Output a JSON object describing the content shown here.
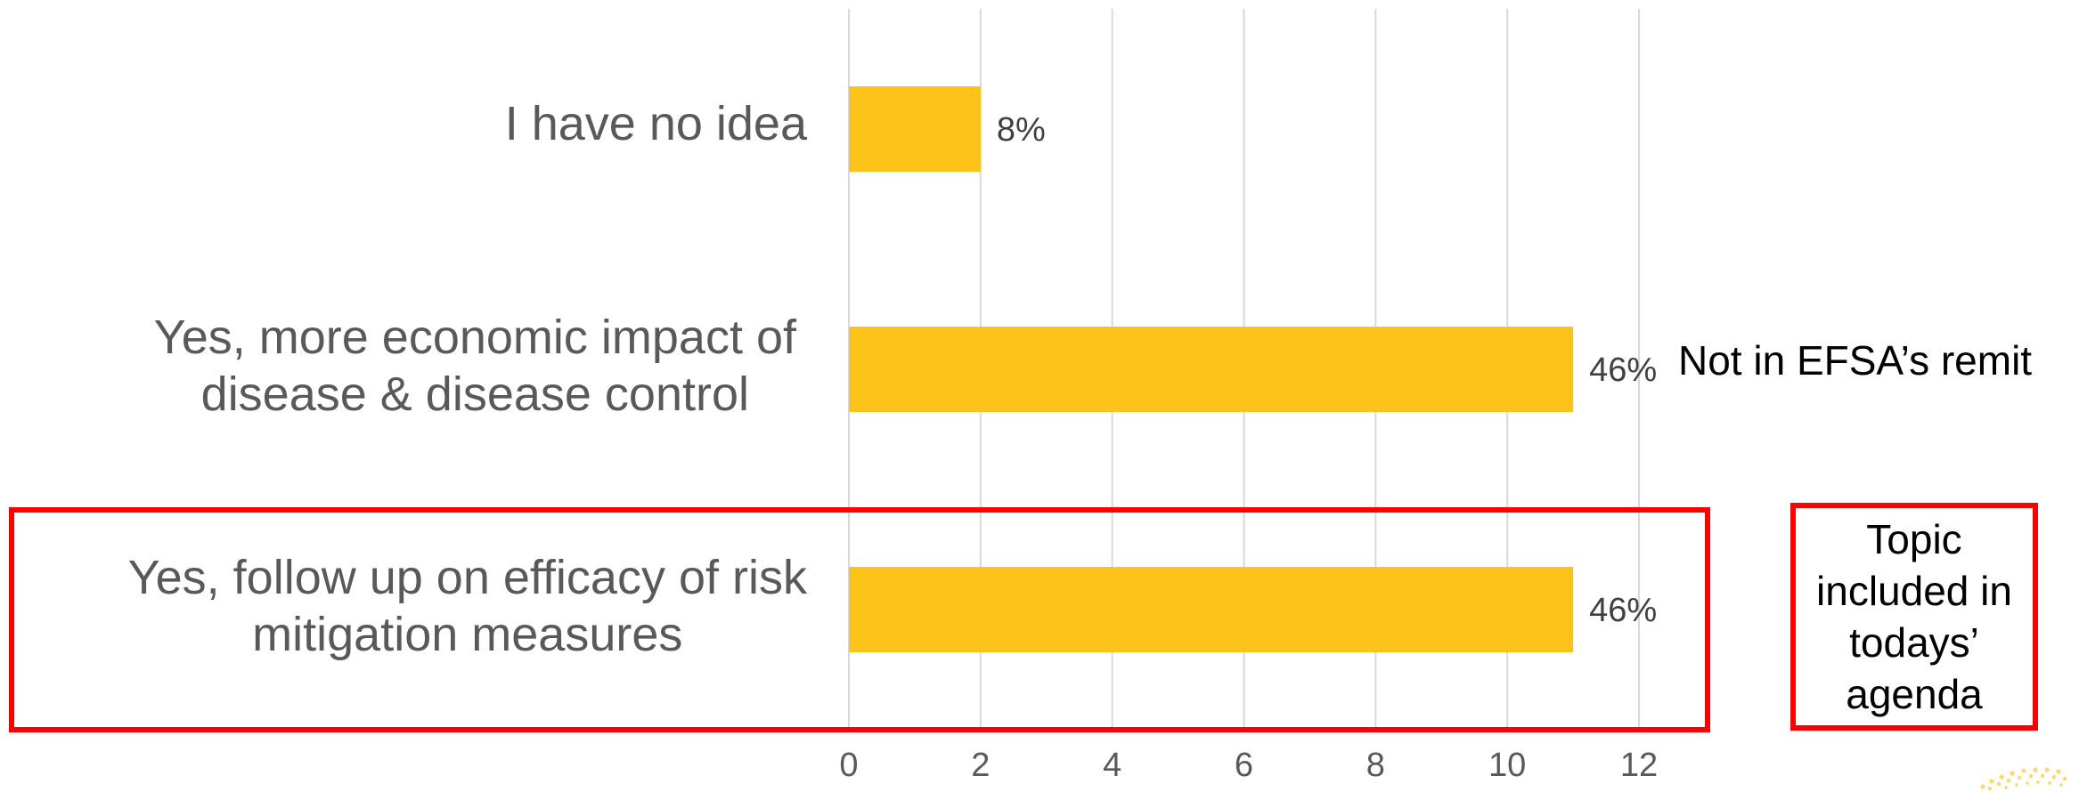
{
  "chart_data": {
    "type": "bar",
    "orientation": "horizontal",
    "categories": [
      "I have no idea",
      "Yes, more economic impact of disease & disease control",
      "Yes, follow up on efficacy of risk mitigation measures"
    ],
    "category_lines": [
      [
        "I have no idea"
      ],
      [
        "Yes, more economic impact of",
        "disease & disease control"
      ],
      [
        "Yes, follow up on efficacy of risk",
        "mitigation measures"
      ]
    ],
    "values": [
      2,
      11,
      11
    ],
    "data_labels": [
      "8%",
      "46%",
      "46%"
    ],
    "xlim": [
      0,
      12
    ],
    "xticks": [
      "0",
      "2",
      "4",
      "6",
      "8",
      "10",
      "12"
    ],
    "grid": "vertical",
    "bar_color": "#FDC31A",
    "title": "",
    "xlabel": "",
    "ylabel": ""
  },
  "annotations": {
    "remit_note": "Not in EFSA’s remit",
    "agenda_note": "Topic included in todays’ agenda",
    "agenda_note_lines": [
      "Topic",
      "included in",
      "todays’",
      "agenda"
    ],
    "highlight_color": "#FF0000"
  }
}
